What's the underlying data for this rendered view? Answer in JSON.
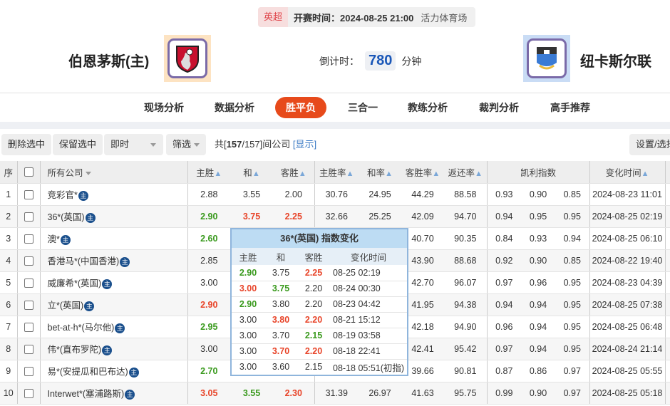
{
  "match": {
    "league": "英超",
    "kickoff": "开赛时间：2024-08-25 21:00",
    "venue": "活力体育场",
    "home": "伯恩茅斯(主)",
    "away": "纽卡斯尔联",
    "countdown_label": "倒计时：",
    "countdown_value": "780",
    "countdown_unit": "分钟"
  },
  "tabs": [
    {
      "label": "现场分析"
    },
    {
      "label": "数据分析"
    },
    {
      "label": "胜平负",
      "active": true
    },
    {
      "label": "三合一"
    },
    {
      "label": "教练分析"
    },
    {
      "label": "裁判分析"
    },
    {
      "label": "高手推荐"
    }
  ],
  "toolbar": {
    "delete": "删除选中",
    "keep": "保留选中",
    "mode": "即时",
    "filter": "筛选",
    "count_prefix": "共[",
    "count_shown": "157",
    "count_sep": "/157]间公司",
    "show": "[显示]",
    "settings": "设置/选择"
  },
  "table": {
    "headers": {
      "idx": "序",
      "company": "所有公司",
      "home": "主胜",
      "draw": "和",
      "away": "客胜",
      "home_rate": "主胜率",
      "draw_rate": "和率",
      "away_rate": "客胜率",
      "return": "返还率",
      "kelly": "凯利指数",
      "time": "变化时间"
    },
    "badge": "主",
    "rows": [
      {
        "idx": "1",
        "company": "竞彩官*",
        "home": "2.88",
        "draw": "3.55",
        "away": "2.00",
        "hr": "30.76",
        "dr": "24.95",
        "ar": "44.29",
        "ret": "88.58",
        "k1": "0.93",
        "k2": "0.90",
        "k3": "0.85",
        "time": "2024-08-23 11:01"
      },
      {
        "idx": "2",
        "company": "36*(英国)",
        "home": "2.90",
        "hc": "g",
        "draw": "3.75",
        "dc": "r",
        "away": "2.25",
        "ac": "r",
        "hr": "32.66",
        "dr": "25.25",
        "ar": "42.09",
        "ret": "94.70",
        "k1": "0.94",
        "k2": "0.95",
        "k3": "0.95",
        "time": "2024-08-25 02:19"
      },
      {
        "idx": "3",
        "company": "澳*",
        "home": "2.60",
        "hc": "g",
        "draw": "",
        "away": "",
        "hr": "",
        "dr": "",
        "ar": "40.70",
        "ret": "90.35",
        "k1": "0.84",
        "k2": "0.93",
        "k3": "0.94",
        "time": "2024-08-25 06:10"
      },
      {
        "idx": "4",
        "company": "香港马*(中国香港)",
        "home": "2.85",
        "draw": "",
        "away": "",
        "hr": "",
        "dr": "",
        "ar": "43.90",
        "ret": "88.68",
        "k1": "0.92",
        "k2": "0.90",
        "k3": "0.85",
        "time": "2024-08-22 19:40"
      },
      {
        "idx": "5",
        "company": "威廉希*(英国)",
        "home": "3.00",
        "draw": "",
        "away": "",
        "hr": "",
        "dr": "",
        "ar": "42.70",
        "ret": "96.07",
        "k1": "0.97",
        "k2": "0.96",
        "k3": "0.95",
        "time": "2024-08-23 04:39"
      },
      {
        "idx": "6",
        "company": "立*(英国)",
        "home": "2.90",
        "hc": "r",
        "draw": "",
        "away": "",
        "hr": "",
        "dr": "",
        "ar": "41.95",
        "ret": "94.38",
        "k1": "0.94",
        "k2": "0.94",
        "k3": "0.95",
        "time": "2024-08-25 07:38"
      },
      {
        "idx": "7",
        "company": "bet-at-h*(马尔他)",
        "home": "2.95",
        "hc": "g",
        "draw": "",
        "away": "",
        "hr": "",
        "dr": "",
        "ar": "42.18",
        "ret": "94.90",
        "k1": "0.96",
        "k2": "0.94",
        "k3": "0.95",
        "time": "2024-08-25 06:48"
      },
      {
        "idx": "8",
        "company": "伟*(直布罗陀)",
        "home": "3.00",
        "draw": "",
        "away": "",
        "hr": "",
        "dr": "",
        "ar": "42.41",
        "ret": "95.42",
        "k1": "0.97",
        "k2": "0.94",
        "k3": "0.95",
        "time": "2024-08-24 21:14"
      },
      {
        "idx": "9",
        "company": "易*(安提瓜和巴布达)",
        "home": "2.70",
        "hc": "g",
        "draw": "",
        "away": "",
        "hr": "",
        "dr": "",
        "ar": "39.66",
        "ret": "90.81",
        "k1": "0.87",
        "k2": "0.86",
        "k3": "0.97",
        "time": "2024-08-25 05:55"
      },
      {
        "idx": "10",
        "company": "Interwet*(塞浦路斯)",
        "home": "3.05",
        "hc": "r",
        "draw": "3.55",
        "dc": "g",
        "away": "2.30",
        "ac": "r",
        "hr": "31.39",
        "dr": "26.97",
        "ar": "41.63",
        "ret": "95.75",
        "k1": "0.99",
        "k2": "0.90",
        "k3": "0.97",
        "time": "2024-08-25 05:18"
      }
    ]
  },
  "popup": {
    "title": "36*(英国) 指数变化",
    "headers": [
      "主胜",
      "和",
      "客胜",
      "变化时间"
    ],
    "rows": [
      {
        "h": "2.90",
        "hc": "g",
        "d": "3.75",
        "dc": "",
        "a": "2.25",
        "ac": "r",
        "t": "08-25 02:19"
      },
      {
        "h": "3.00",
        "hc": "r",
        "d": "3.75",
        "dc": "g",
        "a": "2.20",
        "ac": "",
        "t": "08-24 00:30"
      },
      {
        "h": "2.90",
        "hc": "g",
        "d": "3.80",
        "dc": "",
        "a": "2.20",
        "ac": "",
        "t": "08-23 04:42"
      },
      {
        "h": "3.00",
        "hc": "",
        "d": "3.80",
        "dc": "r",
        "a": "2.20",
        "ac": "r",
        "t": "08-21 15:12"
      },
      {
        "h": "3.00",
        "hc": "",
        "d": "3.70",
        "dc": "",
        "a": "2.15",
        "ac": "g",
        "t": "08-19 03:58"
      },
      {
        "h": "3.00",
        "hc": "",
        "d": "3.70",
        "dc": "r",
        "a": "2.20",
        "ac": "r",
        "t": "08-18 22:41"
      },
      {
        "h": "3.00",
        "hc": "",
        "d": "3.60",
        "dc": "",
        "a": "2.15",
        "ac": "",
        "t": "08-18 05:51(初指)"
      }
    ]
  },
  "colors": {
    "accent": "#e74a1b",
    "up": "#3a9a1e",
    "down": "#e8452a",
    "countdown": "#1a57b8"
  }
}
